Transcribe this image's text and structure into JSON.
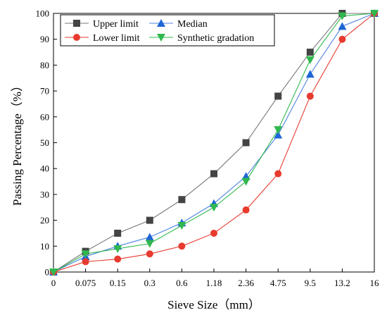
{
  "chart_data": {
    "type": "line",
    "xlabel": "Sieve Size（mm）",
    "ylabel": "Passing Percentage（%）",
    "categories": [
      "0",
      "0.075",
      "0.15",
      "0.3",
      "0.6",
      "1.18",
      "2.36",
      "4.75",
      "9.5",
      "13.2",
      "16"
    ],
    "ylim": [
      0,
      100
    ],
    "yticks": [
      0,
      10,
      20,
      30,
      40,
      50,
      60,
      70,
      80,
      90,
      100
    ],
    "grid": false,
    "legend_position": "top-left",
    "series": [
      {
        "name": "Upper limit",
        "color": "#444444",
        "line_color": "#777777",
        "marker": "square",
        "values": [
          0,
          8,
          15,
          20,
          28,
          38,
          50,
          68,
          85,
          100,
          100
        ]
      },
      {
        "name": "Median",
        "color": "#1f66d6",
        "line_color": "#4f82e0",
        "marker": "triangle-up",
        "values": [
          0,
          6,
          10,
          13.5,
          19,
          26.5,
          37,
          53,
          76.5,
          95,
          100
        ]
      },
      {
        "name": "Lower limit",
        "color": "#e63b2e",
        "line_color": "#e63b2e",
        "marker": "circle",
        "values": [
          0,
          4,
          5,
          7,
          10,
          15,
          24,
          38,
          68,
          90,
          100
        ]
      },
      {
        "name": "Synthetic gradation",
        "color": "#2fb84e",
        "line_color": "#2fb84e",
        "marker": "triangle-down",
        "values": [
          0,
          7,
          9,
          11,
          18,
          25,
          35,
          55,
          82,
          99,
          100
        ]
      }
    ]
  }
}
